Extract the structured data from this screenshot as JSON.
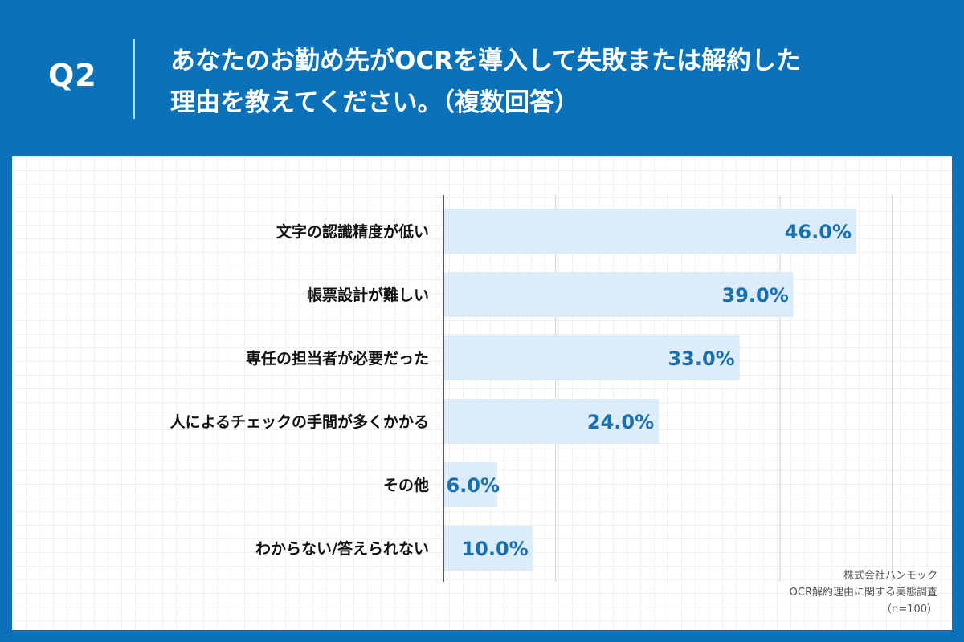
{
  "header": {
    "q_label": "Q2",
    "title_line1": "あなたのお勤め先がOCRを導入して失敗または解約した",
    "title_line2": "理由を教えてください。（複数回答）"
  },
  "source": {
    "company": "株式会社ハンモック",
    "survey": "OCR解約理由に関する実態調査",
    "sample": "（n=100）"
  },
  "colors": {
    "background": "#0b72b9",
    "bar": "#dcedf9",
    "value_text": "#1a6fae",
    "label_text": "#111111",
    "grid": "#d0d0d0"
  },
  "chart_data": {
    "type": "bar",
    "orientation": "horizontal",
    "categories": [
      "文字の認識精度が低い",
      "帳票設計が難しい",
      "専任の担当者が必要だった",
      "人によるチェックの手間が多くかかる",
      "その他",
      "わからない/答えられない"
    ],
    "values": [
      46.0,
      39.0,
      33.0,
      24.0,
      6.0,
      10.0
    ],
    "value_labels": [
      "46.0%",
      "39.0%",
      "33.0%",
      "24.0%",
      "6.0%",
      "10.0%"
    ],
    "xlim": [
      0,
      50
    ],
    "grid_step": 12.5,
    "title": "",
    "xlabel": "",
    "ylabel": ""
  }
}
